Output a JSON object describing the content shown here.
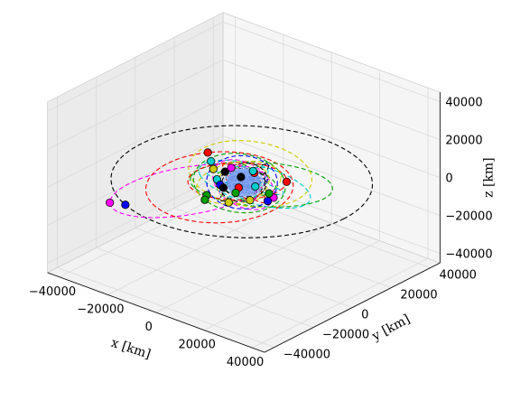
{
  "chart_data": {
    "type": "scatter",
    "dimensions": "3d",
    "axis_labels": {
      "x": "x [km]",
      "y": "y [km]",
      "z": "z [km]"
    },
    "xlim": [
      -45000,
      45000
    ],
    "ylim": [
      -45000,
      45000
    ],
    "zlim": [
      -45000,
      45000
    ],
    "x_ticks": [
      "−40000",
      "−20000",
      "0",
      "20000",
      "40000"
    ],
    "y_ticks": [
      "−40000",
      "−20000",
      "0",
      "20000",
      "40000"
    ],
    "z_ticks": [
      "−40000",
      "−20000",
      "0",
      "20000",
      "40000"
    ],
    "grid": true,
    "central_body": {
      "radius_km": 6371,
      "color": "#6f95e8"
    },
    "orbit_colors": [
      "#000000",
      "#ff0000",
      "#00a000",
      "#cccc00",
      "#ff00ff",
      "#00cccc",
      "#0000ff"
    ],
    "orbits": [
      {
        "color": "#000000",
        "a": 42164,
        "e": 0.02,
        "inc": 0,
        "raan": 0,
        "argp": 0,
        "sat_nu": 245,
        "sat_color": "#0000ff"
      },
      {
        "color": "#ff00ff",
        "a": 26000,
        "e": 0.72,
        "inc": 15,
        "raan": 310,
        "argp": 90,
        "sat_nu": 180,
        "sat_color": "#ff00ff"
      },
      {
        "color": "#ff0000",
        "a": 24000,
        "e": 0.35,
        "inc": 8,
        "raan": 20,
        "argp": 40,
        "sat_nu": 100,
        "sat_color": "#ff0000"
      },
      {
        "color": "#00a000",
        "a": 23000,
        "e": 0.25,
        "inc": 10,
        "raan": 200,
        "argp": 10,
        "sat_nu": 60,
        "sat_color": "#00a000"
      },
      {
        "color": "#cccc00",
        "a": 21000,
        "e": 0.3,
        "inc": 12,
        "raan": 90,
        "argp": 200,
        "sat_nu": 0,
        "sat_color": "#cccc00"
      },
      {
        "color": "#00cccc",
        "a": 19000,
        "e": 0.2,
        "inc": 20,
        "raan": 150,
        "argp": 80,
        "sat_nu": 300,
        "sat_color": "#00cccc"
      },
      {
        "color": "#ff0000",
        "a": 16000,
        "e": 0.15,
        "inc": 5,
        "raan": 250,
        "argp": 120,
        "sat_nu": 30,
        "sat_color": "#ff0000"
      },
      {
        "color": "#00a000",
        "a": 15000,
        "e": 0.1,
        "inc": 25,
        "raan": 60,
        "argp": 0,
        "sat_nu": 200,
        "sat_color": "#00a000"
      },
      {
        "color": "#cccc00",
        "a": 14000,
        "e": 0.12,
        "inc": 15,
        "raan": 330,
        "argp": 60,
        "sat_nu": 140,
        "sat_color": "#cccc00"
      },
      {
        "color": "#00cccc",
        "a": 13000,
        "e": 0.05,
        "inc": 30,
        "raan": 180,
        "argp": 0,
        "sat_nu": 80,
        "sat_color": "#00cccc"
      },
      {
        "color": "#ff00ff",
        "a": 12000,
        "e": 0.1,
        "inc": 40,
        "raan": 100,
        "argp": 30,
        "sat_nu": 260,
        "sat_color": "#ff00ff"
      },
      {
        "color": "#0000ff",
        "a": 11500,
        "e": 0.05,
        "inc": 55,
        "raan": 30,
        "argp": 0,
        "sat_nu": 320,
        "sat_color": "#0000ff"
      },
      {
        "color": "#000000",
        "a": 11000,
        "e": 0.08,
        "inc": 65,
        "raan": 270,
        "argp": 45,
        "sat_nu": 10,
        "sat_color": "#000000"
      },
      {
        "color": "#ff0000",
        "a": 10500,
        "e": 0.05,
        "inc": 50,
        "raan": 140,
        "argp": 0,
        "sat_nu": 150,
        "sat_color": "#ff0000"
      },
      {
        "color": "#00a000",
        "a": 10000,
        "e": 0.04,
        "inc": 70,
        "raan": 210,
        "argp": 0,
        "sat_nu": 220,
        "sat_color": "#00a000"
      },
      {
        "color": "#00cccc",
        "a": 9500,
        "e": 0.03,
        "inc": 35,
        "raan": 300,
        "argp": 0,
        "sat_nu": 40,
        "sat_color": "#00cccc"
      },
      {
        "color": "#cccc00",
        "a": 9000,
        "e": 0.03,
        "inc": 80,
        "raan": 60,
        "argp": 0,
        "sat_nu": 280,
        "sat_color": "#cccc00"
      },
      {
        "color": "#000000",
        "a": 8600,
        "e": 0.02,
        "inc": 45,
        "raan": 0,
        "argp": 0,
        "sat_nu": 170,
        "sat_color": "#000000"
      },
      {
        "color": "#ff00ff",
        "a": 8200,
        "e": 0.02,
        "inc": 60,
        "raan": 120,
        "argp": 0,
        "sat_nu": 90,
        "sat_color": "#ff00ff"
      },
      {
        "color": "#0000ff",
        "a": 7800,
        "e": 0.01,
        "inc": 28,
        "raan": 240,
        "argp": 0,
        "sat_nu": 340,
        "sat_color": "#0000ff"
      },
      {
        "color": "#00a000",
        "a": 7500,
        "e": 0.01,
        "inc": 75,
        "raan": 330,
        "argp": 0,
        "sat_nu": 250,
        "sat_color": "#00a000"
      },
      {
        "color": "#ff0000",
        "a": 7300,
        "e": 0.01,
        "inc": 98,
        "raan": 180,
        "argp": 0,
        "sat_nu": 120,
        "sat_color": "#ff0000"
      },
      {
        "color": "#00cccc",
        "a": 7100,
        "e": 0.01,
        "inc": 52,
        "raan": 90,
        "argp": 0,
        "sat_nu": 20,
        "sat_color": "#00cccc"
      },
      {
        "color": "#000000",
        "a": 7000,
        "e": 0.01,
        "inc": 86,
        "raan": 45,
        "argp": 0,
        "sat_nu": 200,
        "sat_color": "#000000"
      }
    ]
  }
}
